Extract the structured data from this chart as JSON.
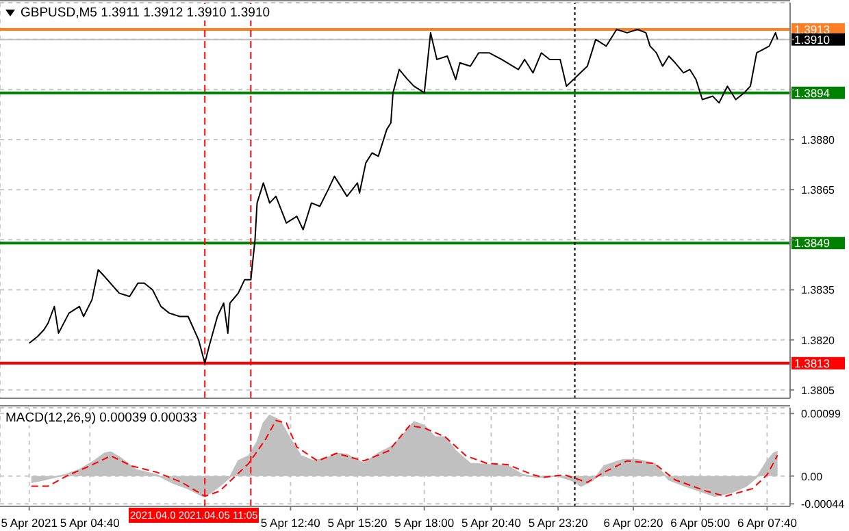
{
  "chart_data": [
    {
      "type": "line",
      "title": "GBPUSD,M5 1.3911 1.3912 1.3910 1.3910",
      "x": [
        "2021-04-05T02:15",
        "2021-04-05T02:35",
        "2021-04-05T02:50",
        "2021-04-05T03:00",
        "2021-04-05T03:15",
        "2021-04-05T03:25",
        "2021-04-05T03:50",
        "2021-04-05T04:15",
        "2021-04-05T04:25",
        "2021-04-05T04:45",
        "2021-04-05T05:00",
        "2021-04-05T05:15",
        "2021-04-05T05:50",
        "2021-04-05T06:15",
        "2021-04-05T06:35",
        "2021-04-05T06:50",
        "2021-04-05T07:10",
        "2021-04-05T07:30",
        "2021-04-05T07:50",
        "2021-04-05T08:15",
        "2021-04-05T08:35",
        "2021-04-05T09:00",
        "2021-04-05T09:15",
        "2021-04-05T09:25",
        "2021-04-05T09:45",
        "2021-04-05T10:00",
        "2021-04-05T10:10",
        "2021-04-05T10:15",
        "2021-04-05T10:35",
        "2021-04-05T10:50",
        "2021-04-05T11:05",
        "2021-04-05T11:15",
        "2021-04-05T11:20",
        "2021-04-05T11:35",
        "2021-04-05T11:50",
        "2021-04-05T12:05",
        "2021-04-05T12:30",
        "2021-04-05T12:55",
        "2021-04-05T13:10",
        "2021-04-05T13:30",
        "2021-04-05T13:50",
        "2021-04-05T14:10",
        "2021-04-05T14:25",
        "2021-04-05T14:55",
        "2021-04-05T15:20",
        "2021-04-05T15:25",
        "2021-04-05T15:40",
        "2021-04-05T15:55",
        "2021-04-05T16:10",
        "2021-04-05T16:30",
        "2021-04-05T16:40",
        "2021-04-05T16:45",
        "2021-04-05T17:00",
        "2021-04-05T17:20",
        "2021-04-05T17:35",
        "2021-04-05T18:00",
        "2021-04-05T18:05",
        "2021-04-05T18:15",
        "2021-04-05T18:30",
        "2021-04-05T18:55",
        "2021-04-05T19:15",
        "2021-04-05T19:25",
        "2021-04-05T19:50",
        "2021-04-05T20:10",
        "2021-04-05T20:35",
        "2021-04-05T21:05",
        "2021-04-05T21:45",
        "2021-04-05T22:00",
        "2021-04-05T22:20",
        "2021-04-05T22:40",
        "2021-04-05T23:00",
        "2021-04-05T23:25",
        "2021-04-05T23:40",
        "2021-04-06T00:05",
        "2021-04-06T00:30",
        "2021-04-06T00:50",
        "2021-04-06T01:15",
        "2021-04-06T01:40",
        "2021-04-06T02:05",
        "2021-04-06T02:30",
        "2021-04-06T02:50",
        "2021-04-06T03:00",
        "2021-04-06T03:15",
        "2021-04-06T03:30",
        "2021-04-06T03:45",
        "2021-04-06T04:00",
        "2021-04-06T04:20",
        "2021-04-06T04:35",
        "2021-04-06T04:50",
        "2021-04-06T05:05",
        "2021-04-06T05:30",
        "2021-04-06T05:45",
        "2021-04-06T06:05",
        "2021-04-06T06:25",
        "2021-04-06T06:45",
        "2021-04-06T07:00",
        "2021-04-06T07:15",
        "2021-04-06T07:30",
        "2021-04-06T07:45",
        "2021-04-06T08:00",
        "2021-04-06T08:05"
      ],
      "series": [
        {
          "color": "#000000",
          "values": [
            1.3819,
            1.3821,
            1.3823,
            1.3825,
            1.383,
            1.3822,
            1.3828,
            1.383,
            1.3827,
            1.3832,
            1.3841,
            1.3839,
            1.3834,
            1.3833,
            1.3837,
            1.3837,
            1.3835,
            1.383,
            1.3828,
            1.3827,
            1.3827,
            1.382,
            1.3813,
            1.3818,
            1.3827,
            1.3831,
            1.3822,
            1.3831,
            1.3834,
            1.3838,
            1.3838,
            1.385,
            1.3861,
            1.3867,
            1.3861,
            1.3863,
            1.3855,
            1.3857,
            1.3853,
            1.3861,
            1.386,
            1.3865,
            1.3869,
            1.3863,
            1.3867,
            1.3864,
            1.3873,
            1.3876,
            1.3875,
            1.3883,
            1.3885,
            1.3894,
            1.3901,
            1.3898,
            1.3896,
            1.3894,
            1.39,
            1.3912,
            1.3904,
            1.3905,
            1.3898,
            1.3903,
            1.3902,
            1.3906,
            1.3906,
            1.3904,
            1.3901,
            1.3904,
            1.39,
            1.3906,
            1.3904,
            1.3904,
            1.3896,
            1.3899,
            1.3902,
            1.391,
            1.3908,
            1.3913,
            1.3912,
            1.3913,
            1.3912,
            1.3908,
            1.3906,
            1.3902,
            1.3905,
            1.3903,
            1.39,
            1.3901,
            1.3898,
            1.3892,
            1.3893,
            1.3891,
            1.3896,
            1.3892,
            1.3894,
            1.3896,
            1.3906,
            1.3907,
            1.3908,
            1.3912,
            1.391
          ]
        }
      ],
      "xlim": [
        "2021-04-05T01:05",
        "2021-04-06T08:35"
      ],
      "ylim": [
        1.38025,
        1.3921
      ],
      "xticks": [
        "2021-04-05T02:15",
        "2021-04-05T04:40",
        "2021-04-05T12:40",
        "2021-04-05T15:20",
        "2021-04-05T18:00",
        "2021-04-05T20:40",
        "2021-04-05T23:20",
        "2021-04-06T02:20",
        "2021-04-06T05:00",
        "2021-04-06T07:40"
      ],
      "yticks": [
        {
          "value": 1.3805,
          "label": "1.3805"
        },
        {
          "value": 1.382,
          "label": "1.3820"
        },
        {
          "value": 1.3835,
          "label": "1.3835"
        },
        {
          "value": 1.385,
          "label": null
        },
        {
          "value": 1.3865,
          "label": "1.3865"
        },
        {
          "value": 1.388,
          "label": "1.3880"
        },
        {
          "value": 1.3895,
          "label": null
        },
        {
          "value": 1.391,
          "label": null
        }
      ],
      "tick_labels": "y",
      "grid": true,
      "ref_lines": [
        {
          "axis": "y",
          "value": 1.3913,
          "label": "1.3913",
          "color": "#ff7f27",
          "line_style": "solid"
        },
        {
          "axis": "y",
          "value": 1.391,
          "label": "1.3910",
          "color": "#c0c0c0",
          "line_style": "solid"
        },
        {
          "axis": "y",
          "value": 1.3894,
          "label": "1.3894",
          "color": "#008000",
          "line_style": "solid"
        },
        {
          "axis": "y",
          "value": 1.3849,
          "label": "1.3849",
          "color": "#008000",
          "line_style": "solid"
        },
        {
          "axis": "y",
          "value": 1.3813,
          "label": "1.3813",
          "color": "#ff0000",
          "line_style": "solid"
        },
        {
          "axis": "x",
          "value": "2021-04-05T09:15",
          "color": "#ff0000",
          "line_style": "dashed"
        },
        {
          "axis": "x",
          "value": "2021-04-05T11:05",
          "color": "#ff0000",
          "line_style": "dashed"
        },
        {
          "axis": "x",
          "value": "2021-04-06T00:00",
          "color": "#000000",
          "line_style": "dotted"
        }
      ]
    },
    {
      "type": "area",
      "title": "MACD(12,26,9) 0.00039 0.00033",
      "series": [
        {
          "color": "#c0c0c0",
          "x": [
            "2021-04-05T02:20",
            "2021-04-05T02:50",
            "2021-04-05T03:40",
            "2021-04-05T04:15",
            "2021-04-05T04:50",
            "2021-04-05T05:15",
            "2021-04-05T05:30",
            "2021-04-05T05:55",
            "2021-04-05T06:30",
            "2021-04-05T07:20",
            "2021-04-05T07:55",
            "2021-04-05T08:35",
            "2021-04-05T09:10",
            "2021-04-05T09:25",
            "2021-04-05T09:50",
            "2021-04-05T10:15",
            "2021-04-05T10:35",
            "2021-04-05T11:00",
            "2021-04-05T11:20",
            "2021-04-05T11:35",
            "2021-04-05T11:50",
            "2021-04-05T12:15",
            "2021-04-05T12:40",
            "2021-04-05T13:05",
            "2021-04-05T13:35",
            "2021-04-05T14:05",
            "2021-04-05T14:30",
            "2021-04-05T14:55",
            "2021-04-05T15:35",
            "2021-04-05T16:10",
            "2021-04-05T16:45",
            "2021-04-05T17:10",
            "2021-04-05T17:35",
            "2021-04-05T18:00",
            "2021-04-05T18:25",
            "2021-04-05T18:50",
            "2021-04-05T19:15",
            "2021-04-05T19:50",
            "2021-04-05T20:30",
            "2021-04-05T21:20",
            "2021-04-05T21:55",
            "2021-04-05T22:30",
            "2021-04-05T23:20",
            "2021-04-05T23:50",
            "2021-04-06T00:15",
            "2021-04-06T00:45",
            "2021-04-06T01:10",
            "2021-04-06T01:55",
            "2021-04-06T02:30",
            "2021-04-06T03:10",
            "2021-04-06T03:45",
            "2021-04-06T04:25",
            "2021-04-06T05:00",
            "2021-04-06T05:35",
            "2021-04-06T06:15",
            "2021-04-06T06:50",
            "2021-04-06T07:15",
            "2021-04-06T07:40",
            "2021-04-06T07:55",
            "2021-04-06T08:05"
          ],
          "values": [
            -0.0001,
            -6e-05,
            2e-05,
            0.0001,
            0.00024,
            0.00036,
            0.00038,
            0.00028,
            0.0001,
            2e-05,
            -0.0001,
            -0.0002,
            -0.00032,
            -0.00028,
            -0.00016,
            -2e-05,
            0.00024,
            0.00032,
            0.00054,
            0.00084,
            0.00096,
            0.00088,
            0.00058,
            0.00032,
            0.00024,
            0.00028,
            0.00036,
            0.00034,
            0.0002,
            0.00036,
            0.00048,
            0.00066,
            0.00086,
            0.0008,
            0.00062,
            0.00062,
            0.0004,
            0.0002,
            0.00018,
            0.00016,
            2e-05,
            -2e-05,
            0,
            -6e-05,
            -0.00016,
            -6e-05,
            0.00016,
            0.00026,
            0.00026,
            0.0002,
            -6e-05,
            -0.00016,
            -0.00024,
            -0.00032,
            -0.00026,
            -0.00016,
            -2e-05,
            0.00024,
            0.00036,
            0.00039
          ]
        },
        {
          "type": "line",
          "color": "#ff0000",
          "line_style": "dashed",
          "x": [
            "2021-04-05T02:20",
            "2021-04-05T03:00",
            "2021-04-05T03:50",
            "2021-04-05T04:40",
            "2021-04-05T05:30",
            "2021-04-05T06:20",
            "2021-04-05T07:20",
            "2021-04-05T08:20",
            "2021-04-05T09:15",
            "2021-04-05T09:50",
            "2021-04-05T10:25",
            "2021-04-05T11:00",
            "2021-04-05T11:40",
            "2021-04-05T12:05",
            "2021-04-05T12:30",
            "2021-04-05T12:55",
            "2021-04-05T13:45",
            "2021-04-05T14:30",
            "2021-04-05T15:35",
            "2021-04-05T16:35",
            "2021-04-05T17:25",
            "2021-04-05T18:00",
            "2021-04-05T18:50",
            "2021-04-05T19:40",
            "2021-04-05T20:30",
            "2021-04-05T21:20",
            "2021-04-05T22:20",
            "2021-04-05T22:45",
            "2021-04-05T23:35",
            "2021-04-06T00:30",
            "2021-04-06T01:10",
            "2021-04-06T02:05",
            "2021-04-06T03:10",
            "2021-04-06T04:00",
            "2021-04-06T05:15",
            "2021-04-06T06:00",
            "2021-04-06T07:05",
            "2021-04-06T07:40",
            "2021-04-06T08:05"
          ],
          "values": [
            -0.00016,
            -0.00016,
            2e-05,
            0.00016,
            0.00032,
            0.00016,
            6e-05,
            -0.0001,
            -0.00032,
            -0.00024,
            -2e-05,
            0.0002,
            0.00058,
            0.00088,
            0.00084,
            0.00046,
            0.00024,
            0.00036,
            0.00024,
            0.0004,
            0.0008,
            0.00076,
            0.00062,
            0.00032,
            0.0002,
            0.00018,
            2e-05,
            -2e-05,
            2e-05,
            -0.0001,
            6e-05,
            0.00024,
            0.0002,
            -6e-05,
            -0.00024,
            -0.00032,
            -0.0002,
            2e-05,
            0.00033
          ]
        }
      ],
      "xlim": [
        "2021-04-05T01:05",
        "2021-04-06T08:35"
      ],
      "ylim": [
        -0.00048,
        0.00108
      ],
      "xticks": [
        {
          "value": "2021-04-05T02:15",
          "label": "5 Apr 2021"
        },
        {
          "value": "2021-04-05T04:40",
          "label": "5 Apr 04:40"
        },
        {
          "value": "2021-04-05T12:40",
          "label": "5 Apr 12:40"
        },
        {
          "value": "2021-04-05T15:20",
          "label": "5 Apr 15:20"
        },
        {
          "value": "2021-04-05T18:00",
          "label": "5 Apr 18:00"
        },
        {
          "value": "2021-04-05T20:40",
          "label": "5 Apr 20:40"
        },
        {
          "value": "2021-04-05T23:20",
          "label": "5 Apr 23:20"
        },
        {
          "value": "2021-04-06T02:20",
          "label": "6 Apr 02:20"
        },
        {
          "value": "2021-04-06T05:00",
          "label": "6 Apr 05:00"
        },
        {
          "value": "2021-04-06T07:40",
          "label": "6 Apr 07:40"
        }
      ],
      "yticks": [
        {
          "value": 0.00099,
          "label": "0.00099"
        },
        {
          "value": 0,
          "label": "0.00"
        },
        {
          "value": -0.00044,
          "label": "-0.00044"
        }
      ],
      "grid": true,
      "ref_lines": [
        {
          "axis": "x",
          "value": "2021-04-05T09:15",
          "label": "2021.04.0",
          "color": "#ff0000",
          "line_style": "dashed"
        },
        {
          "axis": "x",
          "value": "2021-04-05T11:05",
          "label": "2021.04.05 11:05",
          "color": "#ff0000",
          "line_style": "dashed"
        },
        {
          "axis": "x",
          "value": "2021-04-06T00:00",
          "color": "#000000",
          "line_style": "dotted"
        }
      ]
    }
  ]
}
